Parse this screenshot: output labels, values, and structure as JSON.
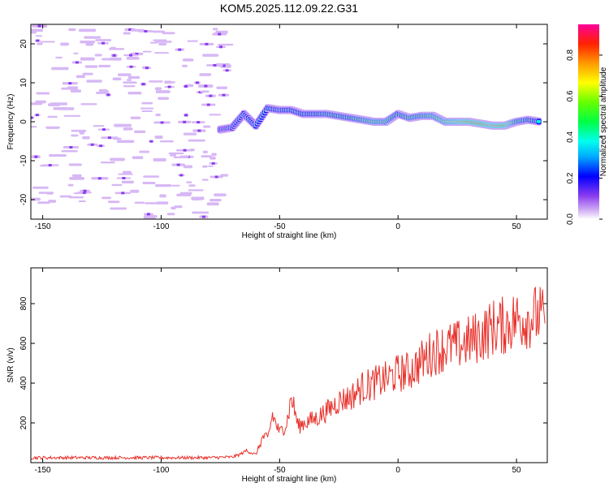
{
  "title": "KOM5.2025.112.09.22.G31",
  "chart_data": [
    {
      "type": "heatmap",
      "xlabel": "Height of straight line (km)",
      "ylabel": "Frequency (Hz)",
      "xlim": [
        -155,
        63
      ],
      "ylim": [
        -25,
        25
      ],
      "xticks": [
        -150,
        -100,
        -50,
        0,
        50
      ],
      "yticks": [
        -20,
        -10,
        0,
        10,
        20
      ],
      "colorbar": {
        "label": "Normalized spectral amplitude",
        "range": [
          0,
          0.95
        ],
        "ticks": [
          0.0,
          0.2,
          0.4,
          0.6,
          0.8
        ]
      },
      "ridge": {
        "x": [
          -75,
          -70,
          -65,
          -60,
          -55,
          -50,
          -45,
          -40,
          -35,
          -30,
          -25,
          -20,
          -15,
          -10,
          -5,
          0,
          5,
          10,
          15,
          20,
          25,
          30,
          35,
          40,
          45,
          50,
          55,
          60
        ],
        "frequency": [
          -2,
          -1.5,
          2,
          -1,
          3.5,
          3,
          3,
          2,
          2,
          2,
          1.5,
          1,
          0.5,
          0,
          0,
          2,
          1,
          1.5,
          1.5,
          0,
          0,
          0,
          -0.5,
          -1,
          -1,
          0,
          0.5,
          0
        ],
        "amplitude": [
          0.3,
          0.35,
          0.4,
          0.4,
          0.45,
          0.4,
          0.45,
          0.45,
          0.45,
          0.5,
          0.5,
          0.5,
          0.55,
          0.6,
          0.6,
          0.5,
          0.55,
          0.55,
          0.6,
          0.65,
          0.75,
          0.85,
          0.85,
          0.8,
          0.85,
          0.55,
          0.5,
          0.4
        ]
      },
      "noise_region_x": [
        -155,
        -72
      ]
    },
    {
      "type": "line",
      "xlabel": "Height of straight line (km)",
      "ylabel": "SNR (v/v)",
      "xlim": [
        -155,
        63
      ],
      "ylim": [
        0,
        980
      ],
      "xticks": [
        -150,
        -100,
        -50,
        0,
        50
      ],
      "yticks": [
        200,
        400,
        600,
        800
      ],
      "series": [
        {
          "color": "#e8302a",
          "x": [
            -155,
            -150,
            -140,
            -130,
            -120,
            -110,
            -100,
            -90,
            -80,
            -70,
            -67,
            -64,
            -60,
            -57,
            -55,
            -53,
            -50,
            -47,
            -45,
            -42,
            -40,
            -35,
            -30,
            -25,
            -20,
            -15,
            -10,
            -5,
            0,
            5,
            10,
            15,
            20,
            25,
            30,
            35,
            40,
            45,
            50,
            55,
            60,
            62
          ],
          "y": [
            25,
            25,
            25,
            25,
            25,
            25,
            25,
            25,
            25,
            28,
            40,
            60,
            40,
            130,
            120,
            240,
            150,
            200,
            330,
            180,
            200,
            220,
            260,
            310,
            330,
            380,
            400,
            420,
            450,
            460,
            510,
            560,
            580,
            590,
            610,
            640,
            680,
            690,
            720,
            730,
            740,
            700
          ]
        }
      ]
    }
  ]
}
